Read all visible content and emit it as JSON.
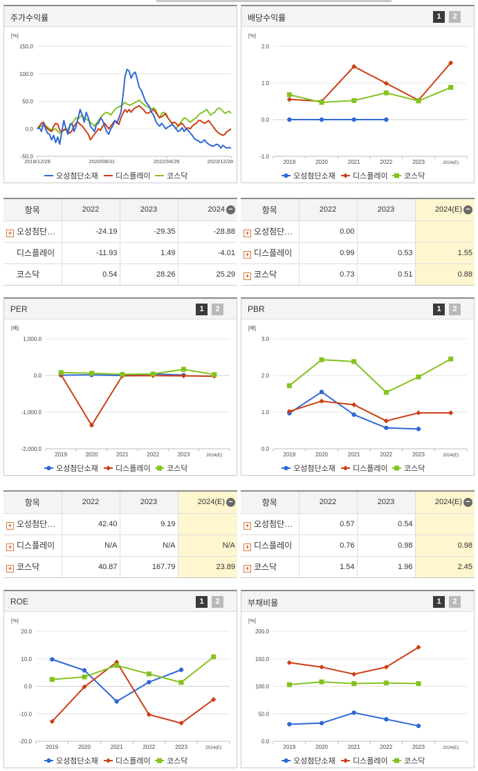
{
  "colors": {
    "osung": "#2f67d6",
    "display": "#cc3d14",
    "kosdaq": "#83c21f"
  },
  "legend": [
    "오성첨단소재",
    "디스플레이",
    "코스닥"
  ],
  "pagination": [
    "1",
    "2"
  ],
  "panels": {
    "stock_return": {
      "title": "주가수익률",
      "unit": "[%]"
    },
    "dividend": {
      "title": "배당수익률",
      "unit": "[%]"
    },
    "per": {
      "title": "PER",
      "unit": "[배]"
    },
    "pbr": {
      "title": "PBR",
      "unit": "[배]"
    },
    "roe": {
      "title": "ROE",
      "unit": "[%]"
    },
    "debt": {
      "title": "부채비율",
      "unit": "[%]"
    }
  },
  "tables": {
    "stock_return": {
      "headers": [
        "항목",
        "2022",
        "2023",
        "2024"
      ],
      "rows": [
        {
          "label": "오성첨단…",
          "values": [
            "-24.19",
            "-29.35",
            "-28.88"
          ]
        },
        {
          "label": "디스플레이",
          "values": [
            "-11.93",
            "1.49",
            "-4.01"
          ]
        },
        {
          "label": "코스닥",
          "values": [
            "0.54",
            "28.26",
            "25.29"
          ]
        }
      ]
    },
    "dividend": {
      "headers": [
        "항목",
        "2022",
        "2023",
        "2024(E)"
      ],
      "rows": [
        {
          "label": "오성첨단…",
          "values": [
            "0.00",
            "",
            ""
          ]
        },
        {
          "label": "디스플레이",
          "values": [
            "0.99",
            "0.53",
            "1.55"
          ]
        },
        {
          "label": "코스닥",
          "values": [
            "0.73",
            "0.51",
            "0.88"
          ]
        }
      ]
    },
    "per": {
      "headers": [
        "항목",
        "2022",
        "2023",
        "2024(E)"
      ],
      "rows": [
        {
          "label": "오성첨단…",
          "values": [
            "42.40",
            "9.19",
            ""
          ]
        },
        {
          "label": "디스플레이",
          "values": [
            "N/A",
            "N/A",
            "N/A"
          ]
        },
        {
          "label": "코스닥",
          "values": [
            "40.87",
            "167.79",
            "23.89"
          ]
        }
      ]
    },
    "pbr": {
      "headers": [
        "항목",
        "2022",
        "2023",
        "2024(E)"
      ],
      "rows": [
        {
          "label": "오성첨단…",
          "values": [
            "0.57",
            "0.54",
            ""
          ]
        },
        {
          "label": "디스플레이",
          "values": [
            "0.76",
            "0.98",
            "0.98"
          ]
        },
        {
          "label": "코스닥",
          "values": [
            "1.54",
            "1.96",
            "2.45"
          ]
        }
      ]
    }
  },
  "chart_data": [
    {
      "id": "stock_return",
      "type": "line",
      "title": "주가수익률",
      "ylabel": "[%]",
      "ylim": [
        -50,
        150
      ],
      "yticks": [
        "150.0",
        "100.0",
        "50.0",
        "0.0",
        "-50.0"
      ],
      "xticks": [
        "2018/12/28",
        "2020/08/31",
        "2022/04/29",
        "2023/12/28"
      ],
      "series": [
        {
          "name": "오성첨단소재",
          "values": [
            0,
            2,
            -5,
            10,
            0,
            -8,
            -10,
            -20,
            -12,
            -25,
            -15,
            -28,
            -5,
            15,
            0,
            -10,
            8,
            10,
            -5,
            5,
            20,
            35,
            25,
            12,
            30,
            20,
            5,
            0,
            -5,
            8,
            10,
            20,
            15,
            5,
            -5,
            -10,
            0,
            5,
            15,
            10,
            20,
            30,
            60,
            95,
            108,
            105,
            92,
            100,
            103,
            90,
            75,
            70,
            60,
            50,
            45,
            40,
            30,
            25,
            15,
            8,
            5,
            10,
            5,
            0,
            3,
            5,
            8,
            5,
            0,
            -5,
            -3,
            2,
            -5,
            0,
            -3,
            -8,
            -12,
            -18,
            -20,
            -22,
            -25,
            -24,
            -20,
            -25,
            -28,
            -30,
            -32,
            -30,
            -28,
            -30,
            -35,
            -30,
            -33,
            -35,
            -34,
            -35
          ]
        },
        {
          "name": "디스플레이",
          "values": [
            0,
            5,
            10,
            12,
            5,
            0,
            -3,
            -5,
            5,
            10,
            8,
            -3,
            -5,
            -2,
            0,
            -5,
            -8,
            -3,
            5,
            10,
            12,
            8,
            5,
            0,
            -5,
            -10,
            -20,
            -15,
            -10,
            -5,
            0,
            -3,
            5,
            10,
            5,
            0,
            5,
            10,
            15,
            12,
            8,
            20,
            28,
            35,
            30,
            35,
            30,
            35,
            38,
            40,
            42,
            38,
            35,
            30,
            28,
            30,
            32,
            35,
            30,
            25,
            20,
            22,
            25,
            28,
            20,
            15,
            10,
            12,
            10,
            5,
            8,
            10,
            5,
            0,
            2,
            0,
            5,
            8,
            10,
            15,
            15,
            12,
            10,
            12,
            15,
            10,
            5,
            0,
            -5,
            -8,
            -10,
            -12,
            -10,
            -5,
            -3,
            0
          ]
        },
        {
          "name": "코스닥",
          "values": [
            0,
            3,
            5,
            8,
            5,
            3,
            0,
            -3,
            -2,
            0,
            -5,
            -8,
            -5,
            -3,
            -2,
            0,
            5,
            10,
            15,
            20,
            18,
            22,
            25,
            20,
            18,
            15,
            12,
            8,
            5,
            10,
            15,
            20,
            25,
            28,
            30,
            28,
            25,
            30,
            35,
            38,
            40,
            42,
            45,
            48,
            45,
            43,
            44,
            46,
            48,
            50,
            52,
            48,
            45,
            42,
            40,
            38,
            36,
            38,
            35,
            25,
            20,
            28,
            30,
            25,
            20,
            15,
            10,
            5,
            0,
            5,
            10,
            15,
            20,
            18,
            15,
            12,
            15,
            18,
            20,
            25,
            28,
            30,
            32,
            35,
            30,
            25,
            28,
            30,
            35,
            38,
            36,
            32,
            28,
            30,
            32,
            28
          ]
        }
      ]
    },
    {
      "id": "dividend",
      "type": "line",
      "title": "배당수익률",
      "ylabel": "[%]",
      "ylim": [
        -1,
        2
      ],
      "yticks": [
        "2.0",
        "1.0",
        "0.0",
        "-1.0"
      ],
      "categories": [
        "2019",
        "2020",
        "2021",
        "2022",
        "2023",
        "2024(E)"
      ],
      "series": [
        {
          "name": "오성첨단소재",
          "values": [
            0,
            0,
            0,
            0,
            null,
            null
          ]
        },
        {
          "name": "디스플레이",
          "values": [
            0.55,
            0.5,
            1.45,
            0.99,
            0.53,
            1.55
          ]
        },
        {
          "name": "코스닥",
          "values": [
            0.68,
            0.47,
            0.52,
            0.73,
            0.51,
            0.88
          ]
        }
      ]
    },
    {
      "id": "per",
      "type": "line",
      "title": "PER",
      "ylabel": "[배]",
      "ylim": [
        -2000,
        1000
      ],
      "yticks": [
        "1,000.0",
        "0.0",
        "-1,000.0",
        "-2,000.0"
      ],
      "categories": [
        "2019",
        "2020",
        "2021",
        "2022",
        "2023",
        "2024(E)"
      ],
      "series": [
        {
          "name": "오성첨단소재",
          "values": [
            10,
            15,
            0,
            42.4,
            9.19,
            null
          ]
        },
        {
          "name": "디스플레이",
          "values": [
            20,
            -1360,
            -10,
            -5,
            -10,
            -20
          ]
        },
        {
          "name": "코스닥",
          "values": [
            80,
            60,
            30,
            40.87,
            167.79,
            23.89
          ]
        }
      ]
    },
    {
      "id": "pbr",
      "type": "line",
      "title": "PBR",
      "ylabel": "[배]",
      "ylim": [
        0,
        3
      ],
      "yticks": [
        "3.0",
        "2.0",
        "1.0",
        "0.0"
      ],
      "categories": [
        "2019",
        "2020",
        "2021",
        "2022",
        "2023",
        "2024(E)"
      ],
      "series": [
        {
          "name": "오성첨단소재",
          "values": [
            0.97,
            1.55,
            0.93,
            0.57,
            0.54,
            null
          ]
        },
        {
          "name": "디스플레이",
          "values": [
            1.02,
            1.3,
            1.2,
            0.76,
            0.98,
            0.98
          ]
        },
        {
          "name": "코스닥",
          "values": [
            1.72,
            2.43,
            2.38,
            1.54,
            1.96,
            2.45
          ]
        }
      ]
    },
    {
      "id": "roe",
      "type": "line",
      "title": "ROE",
      "ylabel": "[%]",
      "ylim": [
        -20,
        20
      ],
      "yticks": [
        "20.0",
        "10.0",
        "0.0",
        "-10.0",
        "-20.0"
      ],
      "categories": [
        "2019",
        "2020",
        "2021",
        "2022",
        "2023",
        "2024(E)"
      ],
      "series": [
        {
          "name": "오성첨단소재",
          "values": [
            9.8,
            5.8,
            -5.5,
            1.5,
            6.0,
            null
          ]
        },
        {
          "name": "디스플레이",
          "values": [
            -12.8,
            -0.2,
            8.8,
            -10.3,
            -13.4,
            -4.8
          ]
        },
        {
          "name": "코스닥",
          "values": [
            2.5,
            3.4,
            7.6,
            4.5,
            1.4,
            10.7
          ]
        }
      ]
    },
    {
      "id": "debt",
      "type": "line",
      "title": "부채비율",
      "ylabel": "[%]",
      "ylim": [
        0,
        200
      ],
      "yticks": [
        "200.0",
        "150.0",
        "100.0",
        "50.0",
        "0.0"
      ],
      "categories": [
        "2019",
        "2020",
        "2021",
        "2022",
        "2023",
        "2024(E)"
      ],
      "series": [
        {
          "name": "오성첨단소재",
          "values": [
            31,
            33,
            52,
            40,
            28,
            null
          ]
        },
        {
          "name": "디스플레이",
          "values": [
            143,
            135,
            122,
            135,
            171,
            null
          ]
        },
        {
          "name": "코스닥",
          "values": [
            103,
            108,
            105,
            106,
            105,
            null
          ]
        }
      ]
    }
  ]
}
